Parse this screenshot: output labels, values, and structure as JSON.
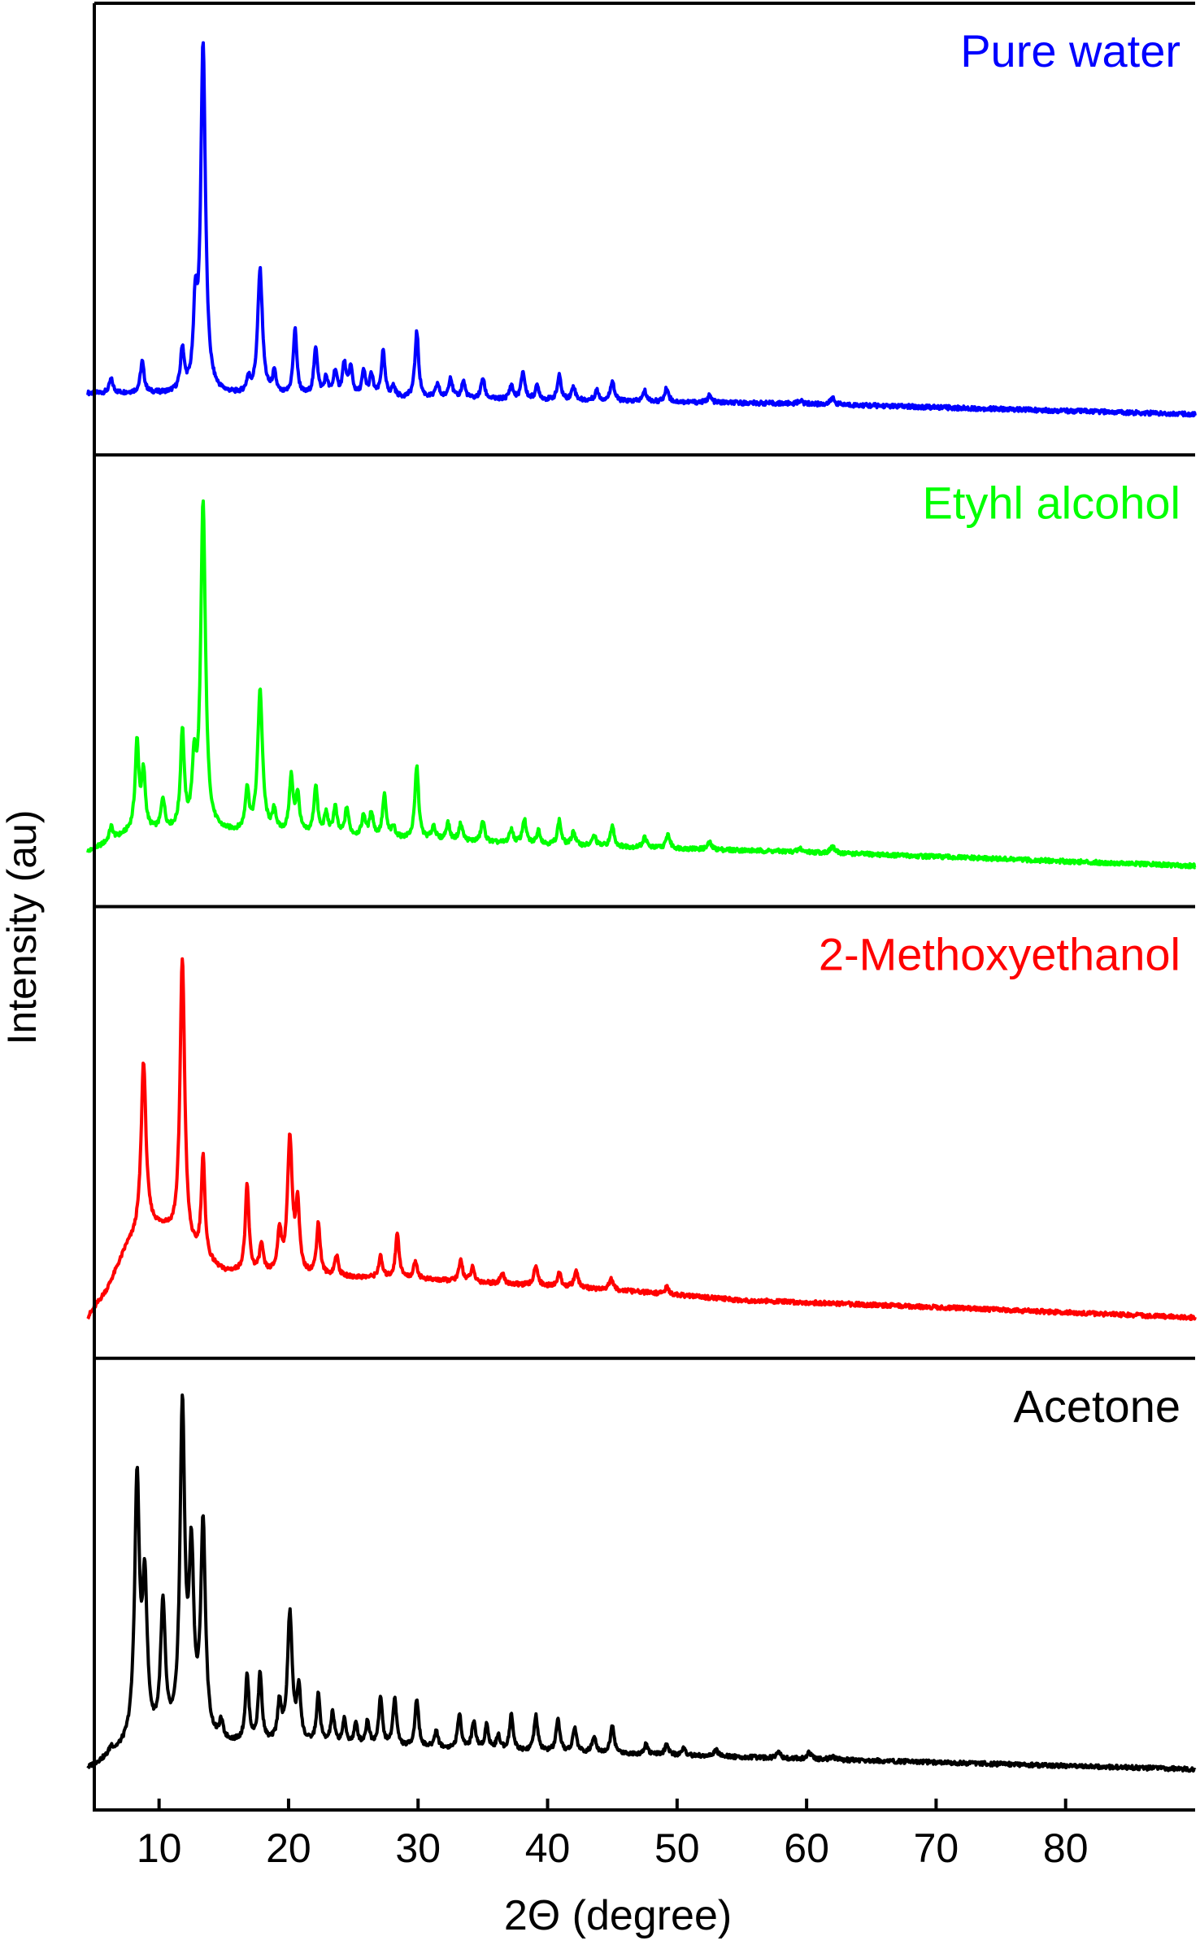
{
  "chart_data": {
    "type": "line",
    "xlabel": "2Θ (degree)",
    "ylabel": "Intensity (au)",
    "xlim": [
      5,
      90
    ],
    "xticks": [
      10,
      20,
      30,
      40,
      50,
      60,
      70,
      80
    ],
    "xtick_labels": [
      "10",
      "20",
      "30",
      "40",
      "50",
      "60",
      "70",
      "80"
    ],
    "grid": false,
    "panels": [
      {
        "name": "Pure water",
        "color": "#0000ff",
        "baseline": [
          [
            4.5,
            0.06
          ],
          [
            8,
            0.06
          ],
          [
            20,
            0.05
          ],
          [
            40,
            0.04
          ],
          [
            60,
            0.03
          ],
          [
            90,
            0.0
          ]
        ],
        "peaks": [
          [
            6.3,
            0.04
          ],
          [
            8.7,
            0.09
          ],
          [
            11.8,
            0.12
          ],
          [
            12.8,
            0.22
          ],
          [
            13.4,
            1.0
          ],
          [
            16.9,
            0.04
          ],
          [
            17.8,
            0.36
          ],
          [
            18.9,
            0.06
          ],
          [
            20.5,
            0.19
          ],
          [
            22.1,
            0.14
          ],
          [
            22.9,
            0.05
          ],
          [
            23.6,
            0.07
          ],
          [
            24.3,
            0.09
          ],
          [
            24.8,
            0.08
          ],
          [
            25.8,
            0.07
          ],
          [
            26.4,
            0.06
          ],
          [
            27.3,
            0.13
          ],
          [
            28.1,
            0.03
          ],
          [
            29.9,
            0.19
          ],
          [
            31.5,
            0.04
          ],
          [
            32.5,
            0.06
          ],
          [
            33.5,
            0.05
          ],
          [
            35.0,
            0.06
          ],
          [
            37.2,
            0.04
          ],
          [
            38.1,
            0.08
          ],
          [
            39.2,
            0.04
          ],
          [
            40.9,
            0.07
          ],
          [
            42.0,
            0.04
          ],
          [
            43.8,
            0.03
          ],
          [
            45.0,
            0.06
          ],
          [
            47.5,
            0.03
          ],
          [
            49.2,
            0.04
          ],
          [
            52.5,
            0.02
          ],
          [
            59.5,
            0.01
          ],
          [
            62.0,
            0.02
          ]
        ]
      },
      {
        "name": "Etyhl alcohol",
        "color": "#00ff00",
        "baseline": [
          [
            4.5,
            0.04
          ],
          [
            8,
            0.1
          ],
          [
            20,
            0.09
          ],
          [
            40,
            0.06
          ],
          [
            60,
            0.04
          ],
          [
            90,
            0.0
          ]
        ],
        "peaks": [
          [
            6.3,
            0.04
          ],
          [
            8.3,
            0.25
          ],
          [
            8.8,
            0.16
          ],
          [
            10.3,
            0.09
          ],
          [
            11.8,
            0.28
          ],
          [
            12.7,
            0.17
          ],
          [
            13.4,
            0.94
          ],
          [
            16.8,
            0.12
          ],
          [
            17.8,
            0.41
          ],
          [
            18.9,
            0.06
          ],
          [
            20.2,
            0.16
          ],
          [
            20.7,
            0.11
          ],
          [
            22.1,
            0.14
          ],
          [
            22.9,
            0.06
          ],
          [
            23.6,
            0.08
          ],
          [
            24.5,
            0.08
          ],
          [
            25.8,
            0.06
          ],
          [
            26.4,
            0.07
          ],
          [
            27.4,
            0.12
          ],
          [
            28.1,
            0.03
          ],
          [
            29.9,
            0.21
          ],
          [
            31.2,
            0.04
          ],
          [
            32.3,
            0.05
          ],
          [
            33.3,
            0.05
          ],
          [
            35.0,
            0.06
          ],
          [
            37.2,
            0.04
          ],
          [
            38.2,
            0.07
          ],
          [
            39.3,
            0.04
          ],
          [
            40.9,
            0.07
          ],
          [
            42.0,
            0.04
          ],
          [
            43.6,
            0.03
          ],
          [
            45.0,
            0.06
          ],
          [
            47.5,
            0.03
          ],
          [
            49.3,
            0.04
          ],
          [
            52.5,
            0.02
          ],
          [
            59.5,
            0.01
          ],
          [
            62.0,
            0.02
          ]
        ]
      },
      {
        "name": "2-Methoxyethanol",
        "color": "#ff0000",
        "baseline": [
          [
            4.5,
            0.0
          ],
          [
            6,
            0.08
          ],
          [
            7.5,
            0.2
          ],
          [
            9,
            0.26
          ],
          [
            10.5,
            0.25
          ],
          [
            12,
            0.19
          ],
          [
            15,
            0.13
          ],
          [
            20,
            0.12
          ],
          [
            30,
            0.11
          ],
          [
            45,
            0.08
          ],
          [
            55,
            0.05
          ],
          [
            70,
            0.03
          ],
          [
            90,
            0.0
          ]
        ],
        "peaks": [
          [
            8.8,
            0.48
          ],
          [
            11.8,
            0.83
          ],
          [
            13.4,
            0.29
          ],
          [
            16.8,
            0.25
          ],
          [
            17.9,
            0.08
          ],
          [
            19.3,
            0.12
          ],
          [
            20.1,
            0.39
          ],
          [
            20.7,
            0.19
          ],
          [
            22.3,
            0.15
          ],
          [
            23.7,
            0.06
          ],
          [
            27.1,
            0.06
          ],
          [
            28.4,
            0.13
          ],
          [
            29.8,
            0.05
          ],
          [
            33.3,
            0.06
          ],
          [
            34.2,
            0.04
          ],
          [
            36.5,
            0.03
          ],
          [
            39.1,
            0.06
          ],
          [
            40.9,
            0.04
          ],
          [
            42.2,
            0.05
          ],
          [
            44.9,
            0.03
          ],
          [
            49.2,
            0.02
          ]
        ]
      },
      {
        "name": "Acetone",
        "color": "#000000",
        "baseline": [
          [
            4.5,
            0.0
          ],
          [
            6,
            0.03
          ],
          [
            8,
            0.07
          ],
          [
            20,
            0.07
          ],
          [
            40,
            0.05
          ],
          [
            60,
            0.03
          ],
          [
            90,
            0.0
          ]
        ],
        "peaks": [
          [
            6.3,
            0.02
          ],
          [
            8.3,
            0.74
          ],
          [
            8.9,
            0.43
          ],
          [
            10.3,
            0.38
          ],
          [
            11.8,
            0.94
          ],
          [
            12.5,
            0.5
          ],
          [
            13.4,
            0.61
          ],
          [
            14.8,
            0.05
          ],
          [
            16.8,
            0.19
          ],
          [
            17.8,
            0.2
          ],
          [
            19.3,
            0.11
          ],
          [
            20.1,
            0.37
          ],
          [
            20.8,
            0.15
          ],
          [
            22.3,
            0.14
          ],
          [
            23.4,
            0.09
          ],
          [
            24.3,
            0.07
          ],
          [
            25.2,
            0.06
          ],
          [
            26.1,
            0.07
          ],
          [
            27.1,
            0.14
          ],
          [
            28.2,
            0.14
          ],
          [
            29.9,
            0.14
          ],
          [
            31.4,
            0.05
          ],
          [
            33.2,
            0.1
          ],
          [
            34.3,
            0.08
          ],
          [
            35.3,
            0.07
          ],
          [
            36.2,
            0.04
          ],
          [
            37.2,
            0.1
          ],
          [
            39.1,
            0.1
          ],
          [
            40.8,
            0.09
          ],
          [
            42.1,
            0.07
          ],
          [
            43.6,
            0.05
          ],
          [
            45.0,
            0.08
          ],
          [
            47.6,
            0.03
          ],
          [
            49.2,
            0.03
          ],
          [
            50.5,
            0.02
          ],
          [
            53.0,
            0.02
          ],
          [
            57.8,
            0.02
          ],
          [
            60.2,
            0.02
          ],
          [
            62.0,
            0.01
          ]
        ]
      }
    ]
  }
}
